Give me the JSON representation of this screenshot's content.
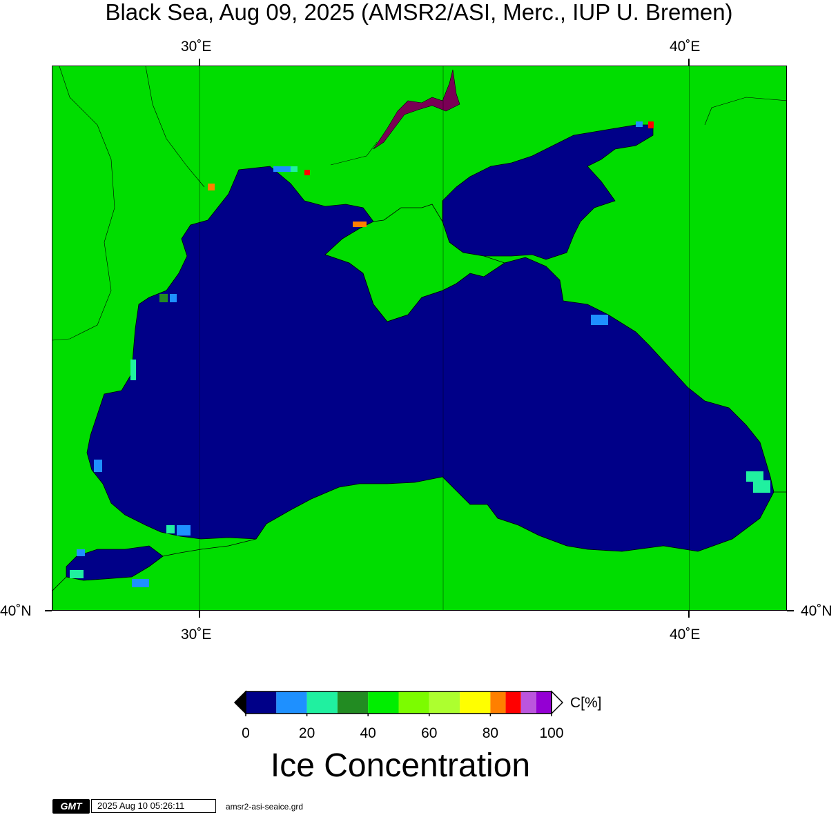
{
  "title": "Black Sea, Aug 09, 2025 (AMSR2/ASI, Merc., IUP U. Bremen)",
  "axes": {
    "top_lon_labels": [
      "30˚E",
      "40˚E"
    ],
    "bottom_lon_labels": [
      "30˚E",
      "40˚E"
    ],
    "left_lat_label": "40˚N",
    "right_lat_label": "40˚N"
  },
  "colors": {
    "land": "#00dd00",
    "sea_open_water": "#000088",
    "coast_line": "#000000",
    "no_data_gray": "#999999",
    "land_mask_purple": "#7a0055"
  },
  "colorbar": {
    "unit_label": "C[%]",
    "tick_labels": [
      "0",
      "20",
      "40",
      "60",
      "80",
      "100"
    ],
    "classes": [
      {
        "from": 0,
        "to": 10,
        "color": "#000088"
      },
      {
        "from": 10,
        "to": 20,
        "color": "#1e90ff"
      },
      {
        "from": 20,
        "to": 30,
        "color": "#20f0a0"
      },
      {
        "from": 30,
        "to": 40,
        "color": "#228b22"
      },
      {
        "from": 40,
        "to": 50,
        "color": "#00ee00"
      },
      {
        "from": 50,
        "to": 60,
        "color": "#7cfc00"
      },
      {
        "from": 60,
        "to": 70,
        "color": "#adff2f"
      },
      {
        "from": 70,
        "to": 80,
        "color": "#ffff00"
      },
      {
        "from": 80,
        "to": 85,
        "color": "#ff7f00"
      },
      {
        "from": 85,
        "to": 90,
        "color": "#ff0000"
      },
      {
        "from": 90,
        "to": 95,
        "color": "#bb55dd"
      },
      {
        "from": 95,
        "to": 100,
        "color": "#9400d3"
      }
    ],
    "title": "Ice Concentration"
  },
  "footer": {
    "logo_text": "GMT",
    "timestamp": "2025 Aug 10 05:26:11",
    "filename": "amsr2-asi-seaice.grd"
  }
}
